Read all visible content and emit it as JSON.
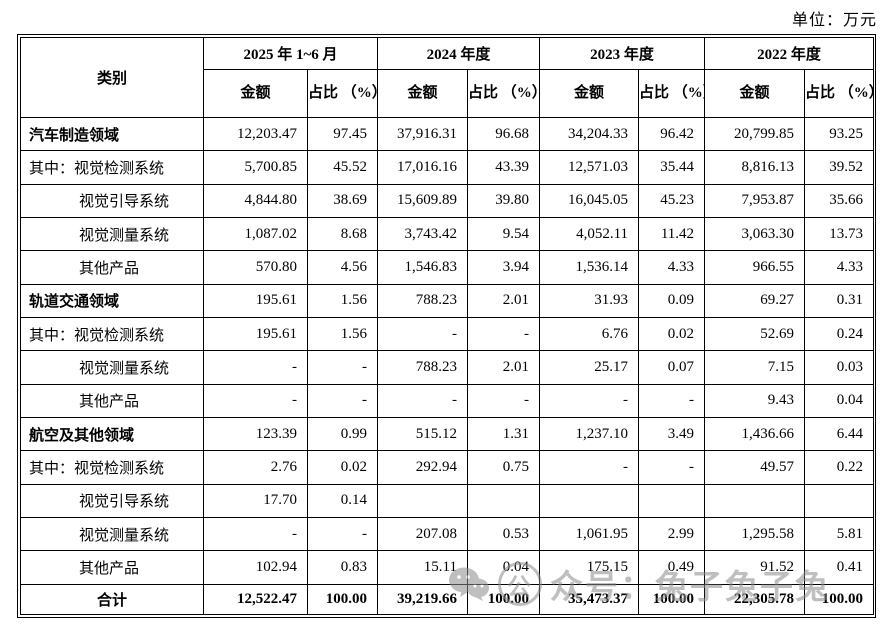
{
  "page": {
    "unit_label": "单位：万元"
  },
  "watermark": {
    "wechat_icon": "wechat-icon",
    "badge": "公",
    "text": "众号：兔子兔子兔"
  },
  "table": {
    "category_header": "类别",
    "amount_header": "金额",
    "ratio_header": "占比\n（%）",
    "years": [
      {
        "label": "2025 年 1~6 月"
      },
      {
        "label": "2024 年度"
      },
      {
        "label": "2023 年度"
      },
      {
        "label": "2022 年度"
      }
    ],
    "rows": [
      {
        "label": "汽车制造领域",
        "style": "section",
        "cells": [
          "12,203.47",
          "97.45",
          "37,916.31",
          "96.68",
          "34,204.33",
          "96.42",
          "20,799.85",
          "93.25"
        ]
      },
      {
        "label": "其中：视觉检测系统",
        "style": "sub-first",
        "cells": [
          "5,700.85",
          "45.52",
          "17,016.16",
          "43.39",
          "12,571.03",
          "35.44",
          "8,816.13",
          "39.52"
        ]
      },
      {
        "label": "视觉引导系统",
        "style": "sub",
        "cells": [
          "4,844.80",
          "38.69",
          "15,609.89",
          "39.80",
          "16,045.05",
          "45.23",
          "7,953.87",
          "35.66"
        ]
      },
      {
        "label": "视觉测量系统",
        "style": "sub",
        "cells": [
          "1,087.02",
          "8.68",
          "3,743.42",
          "9.54",
          "4,052.11",
          "11.42",
          "3,063.30",
          "13.73"
        ]
      },
      {
        "label": "其他产品",
        "style": "sub",
        "cells": [
          "570.80",
          "4.56",
          "1,546.83",
          "3.94",
          "1,536.14",
          "4.33",
          "966.55",
          "4.33"
        ]
      },
      {
        "label": "轨道交通领域",
        "style": "section",
        "cells": [
          "195.61",
          "1.56",
          "788.23",
          "2.01",
          "31.93",
          "0.09",
          "69.27",
          "0.31"
        ]
      },
      {
        "label": "其中：视觉检测系统",
        "style": "sub-first",
        "cells": [
          "195.61",
          "1.56",
          "-",
          "-",
          "6.76",
          "0.02",
          "52.69",
          "0.24"
        ]
      },
      {
        "label": "视觉测量系统",
        "style": "sub",
        "cells": [
          "-",
          "-",
          "788.23",
          "2.01",
          "25.17",
          "0.07",
          "7.15",
          "0.03"
        ]
      },
      {
        "label": "其他产品",
        "style": "sub",
        "cells": [
          "-",
          "-",
          "-",
          "-",
          "-",
          "-",
          "9.43",
          "0.04"
        ]
      },
      {
        "label": "航空及其他领域",
        "style": "section",
        "cells": [
          "123.39",
          "0.99",
          "515.12",
          "1.31",
          "1,237.10",
          "3.49",
          "1,436.66",
          "6.44"
        ]
      },
      {
        "label": "其中：视觉检测系统",
        "style": "sub-first",
        "cells": [
          "2.76",
          "0.02",
          "292.94",
          "0.75",
          "-",
          "-",
          "49.57",
          "0.22"
        ]
      },
      {
        "label": "视觉引导系统",
        "style": "sub",
        "cells": [
          "17.70",
          "0.14",
          "",
          "",
          "",
          "",
          "",
          ""
        ]
      },
      {
        "label": "视觉测量系统",
        "style": "sub",
        "cells": [
          "-",
          "-",
          "207.08",
          "0.53",
          "1,061.95",
          "2.99",
          "1,295.58",
          "5.81"
        ]
      },
      {
        "label": "其他产品",
        "style": "sub",
        "cells": [
          "102.94",
          "0.83",
          "15.11",
          "0.04",
          "175.15",
          "0.49",
          "91.52",
          "0.41"
        ]
      },
      {
        "label": "合计",
        "style": "total",
        "cells": [
          "12,522.47",
          "100.00",
          "39,219.66",
          "100.00",
          "35,473.37",
          "100.00",
          "22,305.78",
          "100.00"
        ]
      }
    ]
  },
  "colors": {
    "border": "#000000",
    "text": "#000000",
    "watermark": "#8b8b8b",
    "background": "#ffffff"
  }
}
